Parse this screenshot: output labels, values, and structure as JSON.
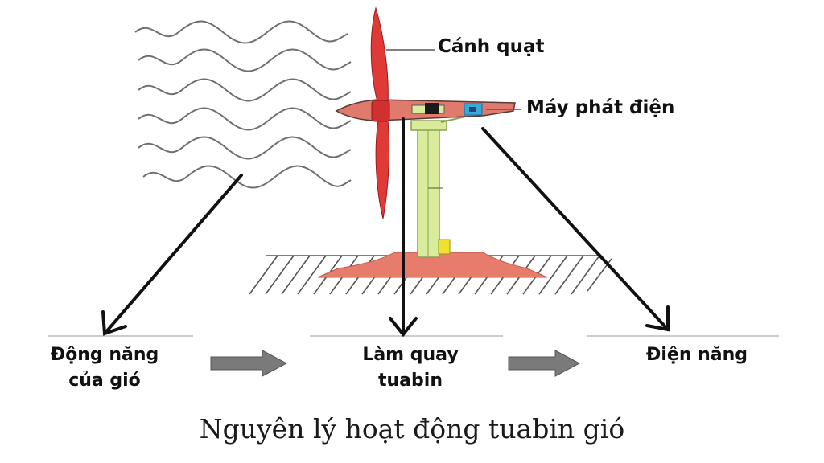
{
  "labels": {
    "blade": "Cánh quạt",
    "generator": "Máy phát điện",
    "kinetic_line1": "Động năng",
    "kinetic_line2": "của gió",
    "rotate_line1": "Làm quay",
    "rotate_line2": "tuabin",
    "electric": "Điện năng"
  },
  "caption": "Nguyên lý hoạt động tuabin gió",
  "colors": {
    "blade": "#e03a36",
    "nacelle": "#e07a6c",
    "tower": "#d8ec9c",
    "base": "#e87c6c",
    "gear": "#f0e030",
    "generator": "#3aa8d8",
    "flow_arrow": "#7a7a7a",
    "wind": "#666666"
  }
}
